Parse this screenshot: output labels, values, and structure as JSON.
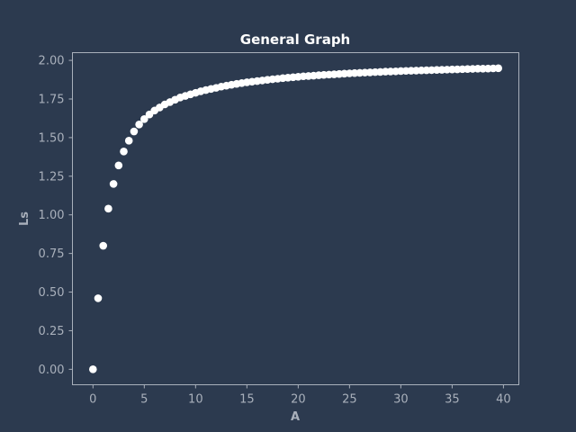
{
  "chart_data": {
    "type": "scatter",
    "title": "General Graph",
    "xlabel": "A",
    "ylabel": "Ls",
    "xlim": [
      -2,
      41.5
    ],
    "ylim": [
      -0.1,
      2.05
    ],
    "xticks": [
      "0",
      "5",
      "10",
      "15",
      "20",
      "25",
      "30",
      "35",
      "40"
    ],
    "yticks": [
      "0.00",
      "0.25",
      "0.50",
      "0.75",
      "1.00",
      "1.25",
      "1.50",
      "1.75",
      "2.00"
    ],
    "grid": false,
    "series": [
      {
        "x": [
          0,
          0.5,
          1,
          1.5,
          2,
          2.5,
          3,
          3.5,
          4,
          4.5,
          5,
          5.5,
          6,
          6.5,
          7,
          7.5,
          8,
          8.5,
          9,
          9.5,
          10,
          10.5,
          11,
          11.5,
          12,
          12.5,
          13,
          13.5,
          14,
          14.5,
          15,
          15.5,
          16,
          16.5,
          17,
          17.5,
          18,
          18.5,
          19,
          19.5,
          20,
          20.5,
          21,
          21.5,
          22,
          22.5,
          23,
          23.5,
          24,
          24.5,
          25,
          25.5,
          26,
          26.5,
          27,
          27.5,
          28,
          28.5,
          29,
          29.5,
          30,
          30.5,
          31,
          31.5,
          32,
          32.5,
          33,
          33.5,
          34,
          34.5,
          35,
          35.5,
          36,
          36.5,
          37,
          37.5,
          38,
          38.5,
          39,
          39.5
        ],
        "y": [
          0.0,
          0.46,
          0.8,
          1.04,
          1.2,
          1.32,
          1.41,
          1.48,
          1.54,
          1.585,
          1.62,
          1.65,
          1.675,
          1.695,
          1.715,
          1.73,
          1.745,
          1.76,
          1.77,
          1.78,
          1.79,
          1.8,
          1.808,
          1.815,
          1.822,
          1.83,
          1.836,
          1.842,
          1.848,
          1.853,
          1.858,
          1.862,
          1.866,
          1.87,
          1.874,
          1.878,
          1.881,
          1.885,
          1.888,
          1.891,
          1.894,
          1.897,
          1.899,
          1.901,
          1.904,
          1.906,
          1.908,
          1.91,
          1.912,
          1.914,
          1.916,
          1.918,
          1.919,
          1.921,
          1.922,
          1.924,
          1.925,
          1.927,
          1.928,
          1.929,
          1.931,
          1.932,
          1.933,
          1.934,
          1.935,
          1.936,
          1.937,
          1.938,
          1.939,
          1.94,
          1.941,
          1.942,
          1.943,
          1.944,
          1.945,
          1.946,
          1.946,
          1.947,
          1.948,
          1.949
        ],
        "color": "#ffffff"
      }
    ],
    "colors": {
      "background": "#2c3a4f",
      "axes_frame": "#a9b0bb",
      "marker": "#ffffff"
    }
  }
}
